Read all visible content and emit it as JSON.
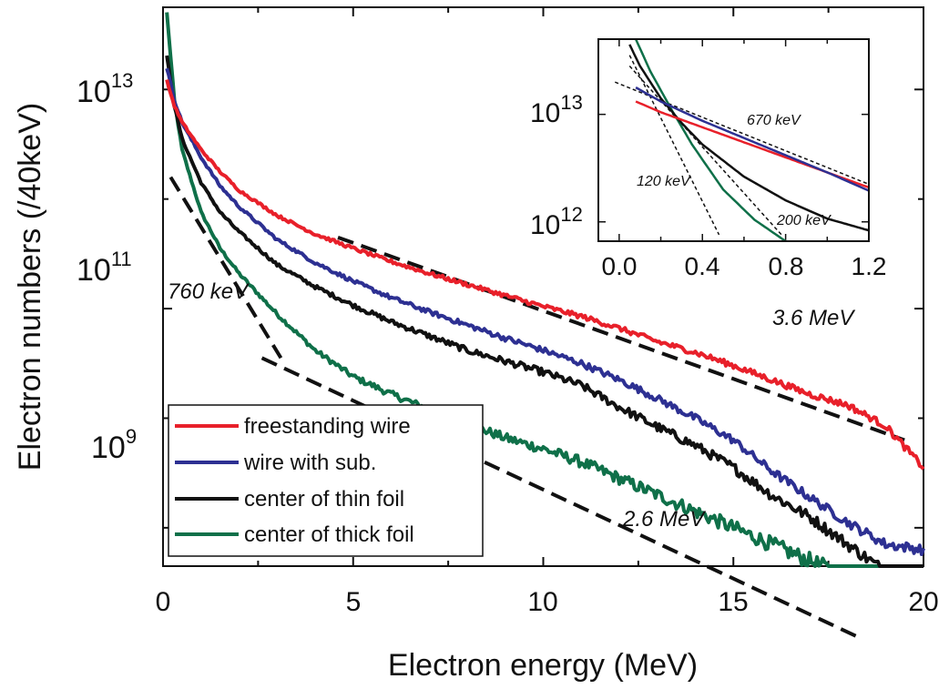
{
  "chart_data": [
    {
      "type": "line",
      "xlabel": "Electron energy (MeV)",
      "ylabel": "Electron numbers (/40keV)",
      "y_scale": "log",
      "xlim": [
        0,
        20
      ],
      "ylim_log10": [
        8.65,
        13.75
      ],
      "x_ticks": [
        "0",
        "5",
        "10",
        "15",
        "20"
      ],
      "y_ticks": [
        {
          "base": "10",
          "exp": "13",
          "log10": 13
        },
        {
          "base": "10",
          "exp": "11",
          "log10": 11
        },
        {
          "base": "10",
          "exp": "9",
          "log10": 9
        }
      ],
      "legend_position": "lower-left",
      "series": [
        {
          "name": "freestanding wire",
          "color": "#e8202a",
          "x": [
            0.1,
            0.3,
            0.5,
            1,
            1.5,
            2,
            3,
            4,
            5,
            6,
            7,
            8,
            9,
            10,
            11,
            12,
            13,
            14,
            15,
            16,
            17,
            18,
            19,
            20
          ],
          "log10_y": [
            13.08,
            12.85,
            12.7,
            12.45,
            12.25,
            12.08,
            11.85,
            11.68,
            11.55,
            11.43,
            11.32,
            11.22,
            11.12,
            11.02,
            10.93,
            10.82,
            10.7,
            10.6,
            10.48,
            10.35,
            10.22,
            10.12,
            9.93,
            9.55
          ]
        },
        {
          "name": "wire with sub.",
          "color": "#2d3092",
          "x": [
            0.1,
            0.3,
            0.5,
            1,
            1.5,
            2,
            3,
            4,
            5,
            6,
            7,
            8,
            9,
            10,
            11,
            12,
            13,
            14,
            15,
            16,
            17,
            18,
            19,
            20
          ],
          "log10_y": [
            13.2,
            12.9,
            12.7,
            12.38,
            12.12,
            11.93,
            11.63,
            11.42,
            11.25,
            11.1,
            10.97,
            10.85,
            10.73,
            10.62,
            10.5,
            10.35,
            10.18,
            10.0,
            9.8,
            9.52,
            9.28,
            9.05,
            8.85,
            8.8
          ]
        },
        {
          "name": "center of thin foil",
          "color": "#111111",
          "x": [
            0.1,
            0.3,
            0.5,
            1,
            1.5,
            2,
            3,
            4,
            5,
            6,
            7,
            8,
            9,
            10,
            11,
            12,
            13,
            14,
            15,
            16,
            17,
            18,
            19,
            20
          ],
          "log10_y": [
            13.3,
            12.85,
            12.55,
            12.15,
            11.88,
            11.7,
            11.4,
            11.2,
            11.03,
            10.88,
            10.75,
            10.62,
            10.52,
            10.42,
            10.3,
            10.1,
            9.92,
            9.75,
            9.55,
            9.3,
            9.1,
            8.85,
            8.6,
            8.45
          ]
        },
        {
          "name": "center of thick foil",
          "color": "#0f7049",
          "x": [
            0.1,
            0.3,
            0.5,
            1,
            1.5,
            2,
            3,
            4,
            5,
            6,
            7,
            8,
            9,
            10,
            11,
            12,
            13,
            14,
            15,
            16,
            17,
            18,
            19,
            20
          ],
          "log10_y": [
            13.7,
            12.9,
            12.45,
            11.88,
            11.55,
            11.32,
            10.95,
            10.62,
            10.38,
            10.22,
            10.08,
            9.95,
            9.82,
            9.72,
            9.6,
            9.45,
            9.3,
            9.15,
            9.0,
            8.85,
            8.7,
            8.55,
            8.4,
            8.3
          ]
        }
      ],
      "fit_lines": [
        {
          "label": "760 keV",
          "x": [
            0.2,
            3.1
          ],
          "log10_y": [
            12.2,
            10.55
          ]
        },
        {
          "label": "3.6 MeV",
          "x": [
            4.6,
            19.5
          ],
          "log10_y": [
            11.65,
            9.8
          ]
        },
        {
          "label": "2.6 MeV",
          "x": [
            2.6,
            18.3
          ],
          "log10_y": [
            10.55,
            8.0
          ]
        }
      ],
      "annotations": [
        "760 keV",
        "3.6 MeV",
        "2.6 MeV"
      ]
    },
    {
      "type": "line",
      "title": "",
      "y_scale": "log",
      "xlim": [
        -0.1,
        1.2
      ],
      "ylim_log10": [
        11.82,
        13.7
      ],
      "x_ticks": [
        "0.0",
        "0.4",
        "0.8",
        "1.2"
      ],
      "y_ticks": [
        {
          "base": "10",
          "exp": "13",
          "log10": 13
        },
        {
          "base": "10",
          "exp": "12",
          "log10": 12
        }
      ],
      "series": [
        {
          "name": "freestanding wire",
          "color": "#e8202a",
          "x": [
            0.08,
            0.2,
            0.4,
            0.6,
            0.8,
            1.0,
            1.2
          ],
          "log10_y": [
            13.12,
            13.02,
            12.88,
            12.74,
            12.6,
            12.46,
            12.32
          ]
        },
        {
          "name": "wire with sub.",
          "color": "#2d3092",
          "x": [
            0.08,
            0.2,
            0.4,
            0.6,
            0.8,
            1.0,
            1.2
          ],
          "log10_y": [
            13.25,
            13.12,
            12.94,
            12.78,
            12.62,
            12.46,
            12.29
          ]
        },
        {
          "name": "center of thin foil",
          "color": "#111111",
          "x": [
            0.05,
            0.1,
            0.2,
            0.3,
            0.4,
            0.6,
            0.8,
            1.0,
            1.2
          ],
          "log10_y": [
            13.65,
            13.45,
            13.15,
            12.92,
            12.72,
            12.42,
            12.2,
            12.03,
            11.92
          ]
        },
        {
          "name": "center of thick foil",
          "color": "#0f7049",
          "x": [
            0.08,
            0.15,
            0.25,
            0.35,
            0.5,
            0.65,
            0.8
          ],
          "log10_y": [
            13.7,
            13.4,
            13.05,
            12.72,
            12.3,
            12.02,
            11.82
          ]
        }
      ],
      "fit_lines": [
        {
          "label": "120 keV",
          "x": [
            0.05,
            0.48
          ],
          "log10_y": [
            13.55,
            11.88
          ]
        },
        {
          "label": "200 keV",
          "x": [
            0.05,
            0.78
          ],
          "log10_y": [
            13.45,
            11.88
          ]
        },
        {
          "label": "670 keV",
          "x": [
            -0.02,
            1.2
          ],
          "log10_y": [
            13.3,
            12.35
          ]
        }
      ],
      "annotations": [
        "670 keV",
        "120 keV",
        "200 keV"
      ]
    }
  ]
}
